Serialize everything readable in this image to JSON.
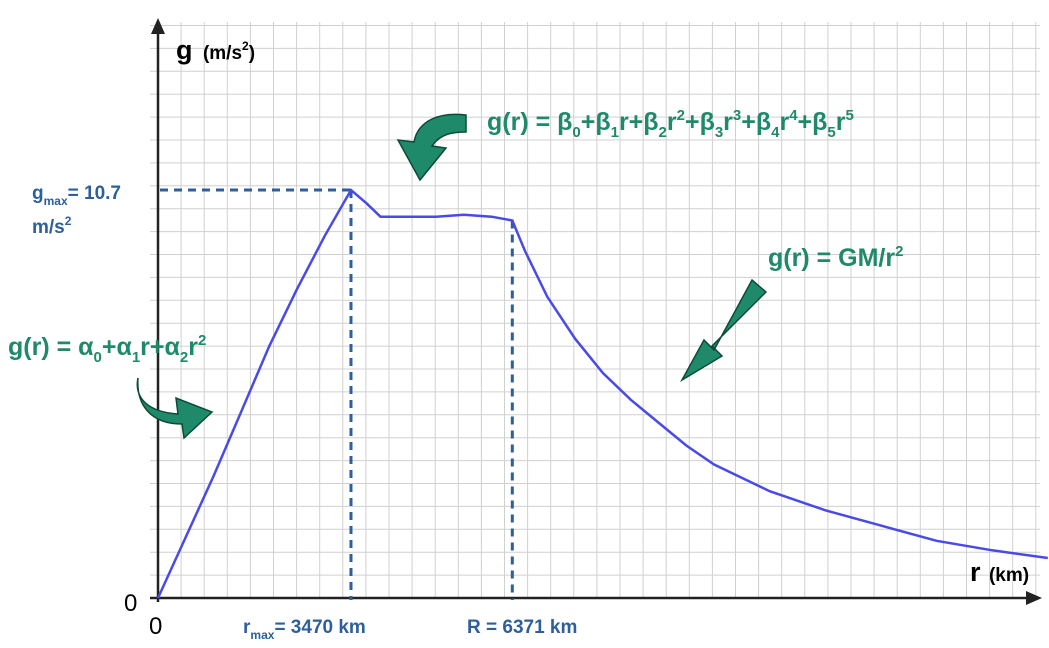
{
  "chart_data": {
    "type": "line",
    "x_axis": {
      "symbol": "r",
      "unit": "(km)"
    },
    "y_axis": {
      "symbol": "g",
      "unit": "(m/s",
      "unit_exp": "2",
      "unit_close": ")"
    },
    "origin_x_label": "0",
    "origin_y_label": "0",
    "grid": true,
    "series": [
      {
        "color": "#4a4ae6",
        "x": [
          0,
          500,
          1000,
          1500,
          2000,
          2500,
          3000,
          3470,
          3750,
          4000,
          4500,
          5000,
          5500,
          6000,
          6371,
          6600,
          7000,
          7500,
          8000,
          8500,
          9000,
          9500,
          10000,
          11000,
          12000,
          13000,
          14000,
          15000,
          16000
        ],
        "y": [
          0,
          1.6,
          3.2,
          4.9,
          6.6,
          8.1,
          9.5,
          10.7,
          10.35,
          10.0,
          10.0,
          10.0,
          10.05,
          10.0,
          9.9,
          9.1,
          7.9,
          6.8,
          5.9,
          5.2,
          4.6,
          4.0,
          3.5,
          2.8,
          2.3,
          1.9,
          1.5,
          1.25,
          1.05
        ]
      }
    ],
    "annotations": {
      "gmax": {
        "main": "g",
        "sub": "max",
        "rest": "= 10.7",
        "line2": "m/s",
        "line2_exp": "2",
        "value": 10.7
      },
      "rmax": {
        "main": "r",
        "sub": "max",
        "rest": "= 3470 km",
        "value": 3470
      },
      "R": {
        "text": "R = 6371 km",
        "value": 6371
      },
      "formula_alpha": {
        "parts": [
          {
            "t": "g(r) = α"
          },
          {
            "t": "0",
            "s": "sub"
          },
          {
            "t": "+α"
          },
          {
            "t": "1",
            "s": "sub"
          },
          {
            "t": "r+α"
          },
          {
            "t": "2",
            "s": "sub"
          },
          {
            "t": "r"
          },
          {
            "t": "2",
            "s": "sup"
          }
        ]
      },
      "formula_beta": {
        "parts": [
          {
            "t": "g(r) = β"
          },
          {
            "t": "0",
            "s": "sub"
          },
          {
            "t": "+β"
          },
          {
            "t": "1",
            "s": "sub"
          },
          {
            "t": "r+β"
          },
          {
            "t": "2",
            "s": "sub"
          },
          {
            "t": "r"
          },
          {
            "t": "2",
            "s": "sup"
          },
          {
            "t": "+β"
          },
          {
            "t": "3",
            "s": "sub"
          },
          {
            "t": "r"
          },
          {
            "t": "3",
            "s": "sup"
          },
          {
            "t": "+β"
          },
          {
            "t": "4",
            "s": "sub"
          },
          {
            "t": "r"
          },
          {
            "t": "4",
            "s": "sup"
          },
          {
            "t": "+β"
          },
          {
            "t": "5",
            "s": "sub"
          },
          {
            "t": "r"
          },
          {
            "t": "5",
            "s": "sup"
          }
        ]
      },
      "formula_gm": {
        "parts": [
          {
            "t": "g(r) = GM/r"
          },
          {
            "t": "2",
            "s": "sup"
          }
        ]
      }
    },
    "colors": {
      "curve": "#4a4ae6",
      "annotation_text": "#1f8a6a",
      "arrow_fill": "#1f8a6a",
      "marker_text": "#2d5f9a",
      "marker_line": "#2d5f9a",
      "grid": "#d0d0d0"
    }
  }
}
